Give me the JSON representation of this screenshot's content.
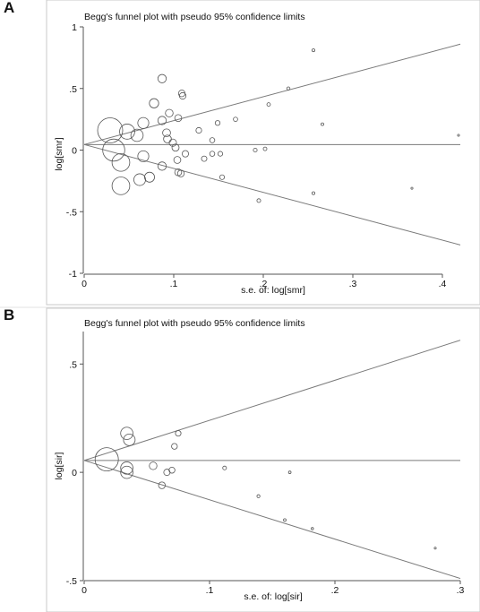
{
  "chart_data": [
    {
      "type": "scatter",
      "panel_label": "A",
      "title": "Begg's funnel plot with pseudo 95% confidence limits",
      "xlabel": "s.e. of: log[smr]",
      "ylabel": "log[smr]",
      "xlim": [
        0,
        0.42
      ],
      "ylim": [
        -1,
        1
      ],
      "x_ticks": [
        {
          "value": 0,
          "label": "0"
        },
        {
          "value": 0.1,
          "label": ".1"
        },
        {
          "value": 0.2,
          "label": ".2"
        },
        {
          "value": 0.3,
          "label": ".3"
        },
        {
          "value": 0.4,
          "label": ".4"
        }
      ],
      "y_ticks": [
        {
          "value": 1,
          "label": "1"
        },
        {
          "value": 0.5,
          "label": ".5"
        },
        {
          "value": 0,
          "label": "0"
        },
        {
          "value": -0.5,
          "label": "-.5"
        },
        {
          "value": -1,
          "label": "-1"
        }
      ],
      "pooled_estimate": 0.045,
      "confidence_limits": {
        "upper_at_xmax": 0.86,
        "lower_at_xmax": -0.77
      },
      "grid": false,
      "marker": "hollow circle, size proportional to study weight",
      "points": [
        {
          "x": 0.029,
          "y": 0.16
        },
        {
          "x": 0.033,
          "y": 0.0
        },
        {
          "x": 0.041,
          "y": -0.1
        },
        {
          "x": 0.048,
          "y": 0.15
        },
        {
          "x": 0.041,
          "y": -0.29
        },
        {
          "x": 0.059,
          "y": 0.12
        },
        {
          "x": 0.066,
          "y": 0.22
        },
        {
          "x": 0.066,
          "y": -0.05
        },
        {
          "x": 0.062,
          "y": -0.24
        },
        {
          "x": 0.073,
          "y": -0.22
        },
        {
          "x": 0.078,
          "y": 0.38
        },
        {
          "x": 0.087,
          "y": 0.58
        },
        {
          "x": 0.087,
          "y": 0.24
        },
        {
          "x": 0.087,
          "y": -0.13
        },
        {
          "x": 0.092,
          "y": 0.14
        },
        {
          "x": 0.093,
          "y": 0.09
        },
        {
          "x": 0.095,
          "y": 0.3
        },
        {
          "x": 0.099,
          "y": 0.06
        },
        {
          "x": 0.102,
          "y": 0.02
        },
        {
          "x": 0.104,
          "y": -0.08
        },
        {
          "x": 0.105,
          "y": 0.26
        },
        {
          "x": 0.105,
          "y": -0.18
        },
        {
          "x": 0.108,
          "y": -0.19
        },
        {
          "x": 0.109,
          "y": 0.46
        },
        {
          "x": 0.11,
          "y": 0.44
        },
        {
          "x": 0.113,
          "y": -0.03
        },
        {
          "x": 0.128,
          "y": 0.16
        },
        {
          "x": 0.134,
          "y": -0.07
        },
        {
          "x": 0.143,
          "y": 0.08
        },
        {
          "x": 0.143,
          "y": -0.03
        },
        {
          "x": 0.149,
          "y": 0.22
        },
        {
          "x": 0.152,
          "y": -0.03
        },
        {
          "x": 0.154,
          "y": -0.22
        },
        {
          "x": 0.169,
          "y": 0.25
        },
        {
          "x": 0.191,
          "y": 0.0
        },
        {
          "x": 0.195,
          "y": -0.41
        },
        {
          "x": 0.202,
          "y": 0.01
        },
        {
          "x": 0.206,
          "y": 0.37
        },
        {
          "x": 0.228,
          "y": 0.5
        },
        {
          "x": 0.256,
          "y": 0.81
        },
        {
          "x": 0.256,
          "y": -0.35
        },
        {
          "x": 0.266,
          "y": 0.21
        },
        {
          "x": 0.366,
          "y": -0.31
        },
        {
          "x": 0.418,
          "y": 0.12
        }
      ]
    },
    {
      "type": "scatter",
      "panel_label": "B",
      "title": "Begg's funnel plot with pseudo 95% confidence limits",
      "xlabel": "s.e. of: log[sir]",
      "ylabel": "log[sir]",
      "xlim": [
        0,
        0.3
      ],
      "ylim": [
        -0.5,
        0.65
      ],
      "x_ticks": [
        {
          "value": 0,
          "label": "0"
        },
        {
          "value": 0.1,
          "label": ".1"
        },
        {
          "value": 0.2,
          "label": ".2"
        },
        {
          "value": 0.3,
          "label": ".3"
        }
      ],
      "y_ticks": [
        {
          "value": 0.5,
          "label": ".5"
        },
        {
          "value": 0,
          "label": "0"
        },
        {
          "value": -0.5,
          "label": "-.5"
        }
      ],
      "pooled_estimate": 0.055,
      "confidence_limits": {
        "upper_at_xmax": 0.61,
        "lower_at_xmax": -0.49
      },
      "grid": false,
      "marker": "hollow circle, size proportional to study weight",
      "points": [
        {
          "x": 0.018,
          "y": 0.06
        },
        {
          "x": 0.034,
          "y": 0.18
        },
        {
          "x": 0.036,
          "y": 0.15
        },
        {
          "x": 0.034,
          "y": 0.02
        },
        {
          "x": 0.034,
          "y": 0.0
        },
        {
          "x": 0.055,
          "y": 0.03
        },
        {
          "x": 0.062,
          "y": -0.06
        },
        {
          "x": 0.066,
          "y": 0.0
        },
        {
          "x": 0.07,
          "y": 0.01
        },
        {
          "x": 0.072,
          "y": 0.12
        },
        {
          "x": 0.075,
          "y": 0.18
        },
        {
          "x": 0.112,
          "y": 0.02
        },
        {
          "x": 0.139,
          "y": -0.11
        },
        {
          "x": 0.16,
          "y": -0.22
        },
        {
          "x": 0.164,
          "y": 0.0
        },
        {
          "x": 0.182,
          "y": -0.26
        },
        {
          "x": 0.28,
          "y": -0.35
        }
      ]
    }
  ]
}
